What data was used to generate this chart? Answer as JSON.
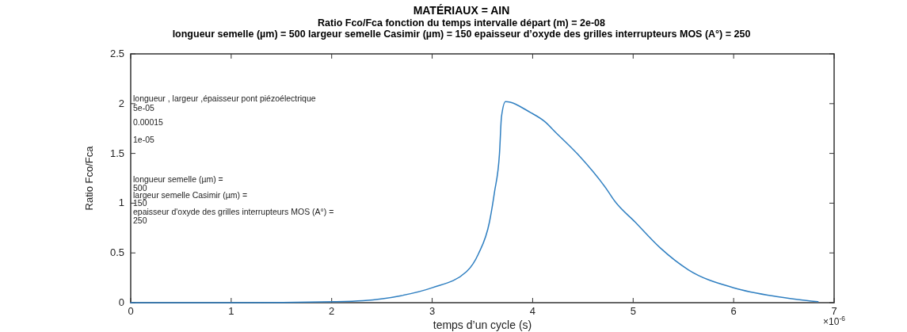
{
  "chart_data": {
    "type": "line",
    "title": "MATÉRIAUX = AIN",
    "subtitle": "Ratio Fco/Fca fonction du temps   intervalle départ (m) = 2e-08\nlongueur semelle (µm) = 500 largeur semelle Casimir (µm) = 150 epaisseur d’oxyde des grilles interrupteurs MOS (A°) = 250",
    "xlabel": "temps d’un cycle (s)",
    "ylabel": "Ratio Fco/Fca",
    "x": [
      0,
      1,
      2.03,
      2.31,
      2.69,
      3.0,
      3.34,
      3.46,
      3.57,
      3.62,
      3.67,
      3.69,
      3.73,
      3.98,
      4.12,
      4.23,
      4.45,
      4.75,
      4.81,
      5.02,
      5.27,
      5.55,
      6.0,
      6.44,
      6.84
    ],
    "values": [
      0,
      0,
      0.01,
      0.02,
      0.07,
      0.15,
      0.31,
      0.49,
      0.81,
      1.11,
      1.5,
      1.87,
      2.02,
      1.91,
      1.82,
      1.71,
      1.49,
      1.12,
      1.03,
      0.81,
      0.55,
      0.33,
      0.15,
      0.06,
      0.01
    ],
    "color": "#2f7fc1",
    "xlim": [
      0,
      7
    ],
    "ylim": [
      0,
      2.5
    ],
    "xticks": [
      0,
      1,
      2,
      3,
      4,
      5,
      6,
      7
    ],
    "yticks": [
      0,
      0.5,
      1,
      1.5,
      2,
      2.5
    ],
    "grid": false,
    "annotations": [
      "longueur , largeur ,épaisseur pont piézoélectrique",
      "5e-05",
      "0.00015",
      "1e-05",
      "longueur semelle (µm) =",
      "500",
      "largeur semelle Casimir (µm) =",
      "150",
      "epaisseur d'oxyde des grilles interrupteurs MOS (A°) =",
      "250",
      "×10$^{-6}$"
    ]
  }
}
